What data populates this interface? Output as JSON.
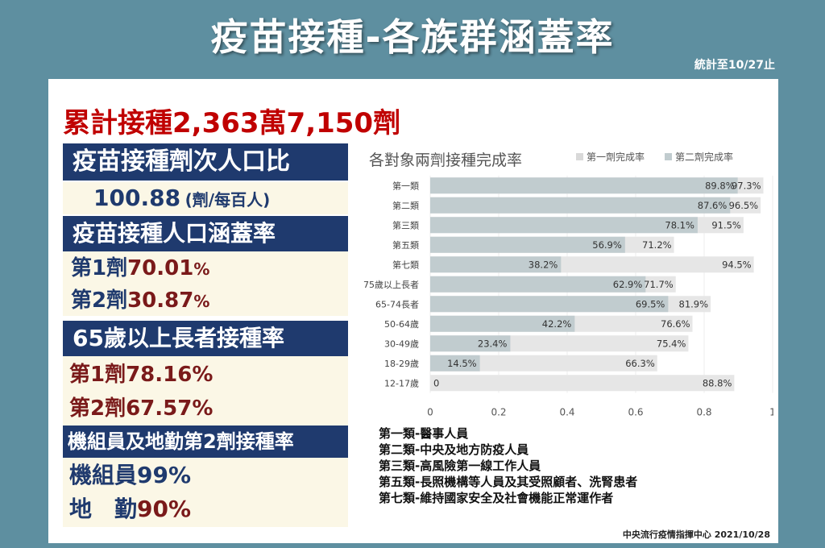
{
  "header": {
    "title": "疫苗接種-各族群涵蓋率",
    "date_note": "統計至10/27止"
  },
  "left": {
    "total": "累計接種2,363萬7,150劑",
    "ratio_title": "疫苗接種劑次人口比",
    "ratio_value": "100.88",
    "ratio_unit": "(劑/每百人)",
    "coverage_title": "疫苗接種人口涵蓋率",
    "coverage_dose1_label": "第1劑",
    "coverage_dose1_value": "70.01",
    "coverage_dose2_label": "第2劑",
    "coverage_dose2_value": "30.87",
    "percent_sign": "%",
    "elderly_title": "65歲以上長者接種率",
    "elderly_dose1": "第1劑78.16%",
    "elderly_dose2": "第2劑67.57%",
    "crew_title": "機組員及地勤第2劑接種率",
    "crew_value": "機組員99%",
    "ground_label": "地　勤",
    "ground_value": "90%"
  },
  "chart_data": {
    "type": "bar",
    "orientation": "horizontal",
    "title": "各對象兩劑接種完成率",
    "categories": [
      "第一類",
      "第二類",
      "第三類",
      "第五類",
      "第七類",
      "75歲以上長者",
      "65-74長者",
      "50-64歲",
      "30-49歲",
      "18-29歲",
      "12-17歲"
    ],
    "series": [
      {
        "name": "第一劑完成率",
        "color": "#e6e6e6",
        "values": [
          0.973,
          0.965,
          0.915,
          0.712,
          0.945,
          0.717,
          0.819,
          0.766,
          0.754,
          0.663,
          0.888
        ],
        "labels": [
          "97.3%",
          "96.5%",
          "91.5%",
          "71.2%",
          "94.5%",
          "71.7%",
          "81.9%",
          "76.6%",
          "75.4%",
          "66.3%",
          "88.8%"
        ]
      },
      {
        "name": "第二劑完成率",
        "color": "#c1cccf",
        "values": [
          0.898,
          0.876,
          0.781,
          0.569,
          0.382,
          0.629,
          0.695,
          0.422,
          0.234,
          0.145,
          0
        ],
        "labels": [
          "89.8%",
          "87.6%",
          "78.1%",
          "56.9%",
          "38.2%",
          "62.9%",
          "69.5%",
          "42.2%",
          "23.4%",
          "14.5%",
          "0"
        ]
      }
    ],
    "xlim": [
      0,
      1
    ],
    "xticks": [
      "0",
      "0.2",
      "0.4",
      "0.6",
      "0.8",
      "1"
    ],
    "legend_position": "top-right",
    "grid": true
  },
  "notes": [
    "第一類-醫事人員",
    "第二類-中央及地方防疫人員",
    "第三類-高風險第一線工作人員",
    "第五類-長照機構等人員及其受照顧者、洗腎患者",
    "第七類-維持國家安全及社會機能正常運作者"
  ],
  "footer": "中央流行疫情指揮中心 2021/10/28"
}
